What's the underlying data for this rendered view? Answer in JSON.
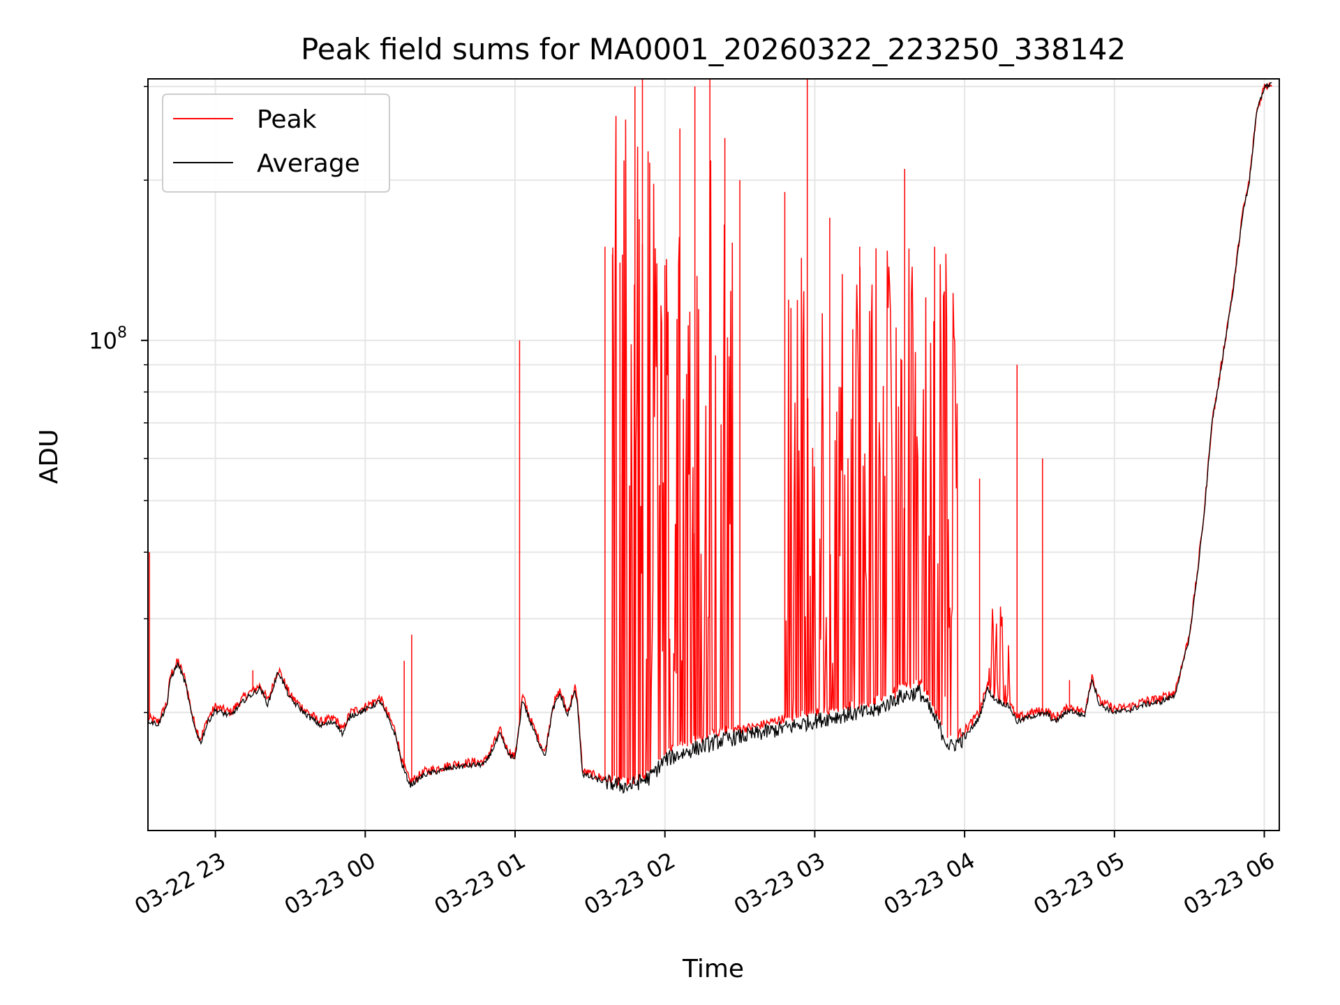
{
  "chart_data": {
    "type": "line",
    "title": "Peak field sums for MA0001_20260322_223250_338142",
    "xlabel": "Time",
    "ylabel": "ADU",
    "yscale": "log",
    "ylim": [
      12000000,
      310000000
    ],
    "xlim": [
      -0.45,
      7.1
    ],
    "grid": true,
    "legend_position": "upper-left",
    "y_major_tick_label": "10",
    "y_major_tick_exponent": "8",
    "y_major_tick_value": 100000000,
    "y_minor_tick_values": [
      20000000,
      30000000,
      40000000,
      50000000,
      60000000,
      70000000,
      80000000,
      90000000,
      200000000,
      300000000
    ],
    "x_ticks": [
      {
        "value": 0,
        "label": "03-22 23"
      },
      {
        "value": 1,
        "label": "03-23 00"
      },
      {
        "value": 2,
        "label": "03-23 01"
      },
      {
        "value": 3,
        "label": "03-23 02"
      },
      {
        "value": 4,
        "label": "03-23 03"
      },
      {
        "value": 5,
        "label": "03-23 04"
      },
      {
        "value": 6,
        "label": "03-23 05"
      },
      {
        "value": 7,
        "label": "03-23 06"
      }
    ],
    "x_unit_note": "x values are hours after 2026-03-22 23:00",
    "series": [
      {
        "name": "Peak",
        "color": "#ff0000",
        "baseline_points": [
          [
            -0.45,
            19500000
          ],
          [
            -0.38,
            19200000
          ],
          [
            -0.32,
            21000000
          ],
          [
            -0.3,
            23500000
          ],
          [
            -0.25,
            25000000
          ],
          [
            -0.2,
            23000000
          ],
          [
            -0.15,
            19500000
          ],
          [
            -0.12,
            18500000
          ],
          [
            -0.1,
            17800000
          ],
          [
            -0.05,
            19500000
          ],
          [
            0.0,
            20500000
          ],
          [
            0.1,
            20000000
          ],
          [
            0.2,
            21500000
          ],
          [
            0.3,
            22500000
          ],
          [
            0.35,
            21000000
          ],
          [
            0.42,
            24200000
          ],
          [
            0.5,
            21500000
          ],
          [
            0.6,
            20200000
          ],
          [
            0.7,
            19200000
          ],
          [
            0.8,
            19500000
          ],
          [
            0.85,
            18500000
          ],
          [
            0.9,
            20000000
          ],
          [
            1.0,
            20500000
          ],
          [
            1.1,
            21300000
          ],
          [
            1.2,
            18500000
          ],
          [
            1.25,
            16000000
          ],
          [
            1.3,
            14800000
          ],
          [
            1.4,
            15500000
          ],
          [
            1.6,
            16000000
          ],
          [
            1.8,
            16200000
          ],
          [
            1.9,
            18500000
          ],
          [
            1.95,
            17000000
          ],
          [
            2.0,
            16500000
          ],
          [
            2.05,
            21500000
          ],
          [
            2.1,
            19500000
          ],
          [
            2.15,
            18000000
          ],
          [
            2.2,
            16800000
          ],
          [
            2.25,
            20500000
          ],
          [
            2.3,
            22000000
          ],
          [
            2.35,
            20000000
          ],
          [
            2.4,
            22300000
          ],
          [
            2.42,
            20500000
          ],
          [
            2.45,
            15500000
          ],
          [
            2.6,
            15000000
          ],
          [
            2.75,
            14800000
          ],
          [
            2.9,
            15300000
          ],
          [
            3.0,
            17000000
          ],
          [
            3.2,
            17800000
          ],
          [
            3.4,
            18500000
          ],
          [
            3.6,
            18800000
          ],
          [
            3.8,
            19500000
          ],
          [
            4.0,
            20000000
          ],
          [
            4.2,
            20500000
          ],
          [
            4.4,
            21000000
          ],
          [
            4.55,
            22300000
          ],
          [
            4.7,
            22800000
          ],
          [
            4.8,
            20500000
          ],
          [
            4.9,
            17800000
          ],
          [
            5.0,
            18500000
          ],
          [
            5.1,
            20000000
          ],
          [
            5.15,
            22500000
          ],
          [
            5.2,
            21500000
          ],
          [
            5.3,
            20800000
          ],
          [
            5.35,
            19500000
          ],
          [
            5.45,
            20000000
          ],
          [
            5.55,
            20200000
          ],
          [
            5.6,
            19500000
          ],
          [
            5.7,
            20500000
          ],
          [
            5.8,
            20000000
          ],
          [
            5.85,
            23500000
          ],
          [
            5.9,
            21000000
          ],
          [
            6.0,
            20300000
          ],
          [
            6.1,
            20500000
          ],
          [
            6.2,
            21000000
          ],
          [
            6.3,
            21200000
          ],
          [
            6.4,
            21800000
          ],
          [
            6.45,
            24500000
          ],
          [
            6.5,
            28000000
          ],
          [
            6.55,
            36000000
          ],
          [
            6.6,
            48000000
          ],
          [
            6.65,
            70000000
          ],
          [
            6.7,
            85000000
          ],
          [
            6.8,
            130000000
          ],
          [
            6.85,
            170000000
          ],
          [
            6.9,
            200000000
          ],
          [
            6.95,
            270000000
          ],
          [
            7.0,
            300000000
          ],
          [
            7.1,
            310000000
          ]
        ],
        "spikes": [
          [
            -0.44,
            40000000
          ],
          [
            0.25,
            24000000
          ],
          [
            1.26,
            25000000
          ],
          [
            1.31,
            28000000
          ],
          [
            2.03,
            100000000
          ],
          [
            2.6,
            150000000
          ],
          [
            2.65,
            145000000
          ],
          [
            2.7,
            140000000
          ],
          [
            2.8,
            300000000
          ],
          [
            2.85,
            310000000
          ],
          [
            3.1,
            250000000
          ],
          [
            3.2,
            300000000
          ],
          [
            3.3,
            310000000
          ],
          [
            3.4,
            240000000
          ],
          [
            3.5,
            200000000
          ],
          [
            3.8,
            190000000
          ],
          [
            3.95,
            310000000
          ],
          [
            4.1,
            170000000
          ],
          [
            4.3,
            150000000
          ],
          [
            4.6,
            210000000
          ],
          [
            4.8,
            150000000
          ],
          [
            5.1,
            55000000
          ],
          [
            5.35,
            90000000
          ],
          [
            5.52,
            60000000
          ],
          [
            5.7,
            23000000
          ]
        ],
        "dense_bands": [
          {
            "x_start": 2.65,
            "x_end": 3.45,
            "peak_max": 270000000,
            "peak_min": 22000000
          },
          {
            "x_start": 3.8,
            "x_end": 4.95,
            "peak_max": 150000000,
            "peak_min": 21000000
          },
          {
            "x_start": 5.15,
            "x_end": 5.3,
            "peak_max": 32000000,
            "peak_min": 21000000
          }
        ]
      },
      {
        "name": "Average",
        "color": "#000000",
        "baseline_points": [
          [
            -0.45,
            19300000
          ],
          [
            -0.38,
            19000000
          ],
          [
            -0.32,
            20800000
          ],
          [
            -0.3,
            23200000
          ],
          [
            -0.25,
            24700000
          ],
          [
            -0.2,
            22700000
          ],
          [
            -0.15,
            19200000
          ],
          [
            -0.12,
            18200000
          ],
          [
            -0.1,
            17500000
          ],
          [
            -0.05,
            19200000
          ],
          [
            0.0,
            20200000
          ],
          [
            0.1,
            19700000
          ],
          [
            0.2,
            21200000
          ],
          [
            0.3,
            22200000
          ],
          [
            0.35,
            20700000
          ],
          [
            0.42,
            23900000
          ],
          [
            0.5,
            21200000
          ],
          [
            0.6,
            19900000
          ],
          [
            0.7,
            18900000
          ],
          [
            0.8,
            19200000
          ],
          [
            0.85,
            18200000
          ],
          [
            0.9,
            19700000
          ],
          [
            1.0,
            20200000
          ],
          [
            1.1,
            21000000
          ],
          [
            1.2,
            18200000
          ],
          [
            1.25,
            15800000
          ],
          [
            1.3,
            14600000
          ],
          [
            1.4,
            15300000
          ],
          [
            1.6,
            15800000
          ],
          [
            1.8,
            16000000
          ],
          [
            1.9,
            18200000
          ],
          [
            1.95,
            16800000
          ],
          [
            2.0,
            16300000
          ],
          [
            2.05,
            21200000
          ],
          [
            2.1,
            19200000
          ],
          [
            2.15,
            17800000
          ],
          [
            2.2,
            16600000
          ],
          [
            2.25,
            20200000
          ],
          [
            2.3,
            21700000
          ],
          [
            2.35,
            19700000
          ],
          [
            2.4,
            22000000
          ],
          [
            2.42,
            20200000
          ],
          [
            2.45,
            15300000
          ],
          [
            2.6,
            14800000
          ],
          [
            2.75,
            14500000
          ],
          [
            2.9,
            15100000
          ],
          [
            3.0,
            16300000
          ],
          [
            3.2,
            17100000
          ],
          [
            3.4,
            17800000
          ],
          [
            3.6,
            18200000
          ],
          [
            3.8,
            18700000
          ],
          [
            4.0,
            19300000
          ],
          [
            4.2,
            19800000
          ],
          [
            4.4,
            20100000
          ],
          [
            4.55,
            21300000
          ],
          [
            4.7,
            21900000
          ],
          [
            4.8,
            19500000
          ],
          [
            4.9,
            17200000
          ],
          [
            5.0,
            17900000
          ],
          [
            5.1,
            19600000
          ],
          [
            5.15,
            22200000
          ],
          [
            5.2,
            21200000
          ],
          [
            5.3,
            20500000
          ],
          [
            5.35,
            19200000
          ],
          [
            5.45,
            19700000
          ],
          [
            5.55,
            19900000
          ],
          [
            5.6,
            19200000
          ],
          [
            5.7,
            20200000
          ],
          [
            5.8,
            19700000
          ],
          [
            5.85,
            23200000
          ],
          [
            5.9,
            20700000
          ],
          [
            6.0,
            20000000
          ],
          [
            6.1,
            20200000
          ],
          [
            6.2,
            20700000
          ],
          [
            6.3,
            20900000
          ],
          [
            6.4,
            21500000
          ],
          [
            6.45,
            24200000
          ],
          [
            6.5,
            27700000
          ],
          [
            6.55,
            35700000
          ],
          [
            6.6,
            47700000
          ],
          [
            6.65,
            69700000
          ],
          [
            6.7,
            84700000
          ],
          [
            6.8,
            129000000
          ],
          [
            6.85,
            169000000
          ],
          [
            6.9,
            199000000
          ],
          [
            6.95,
            269000000
          ],
          [
            7.0,
            299000000
          ],
          [
            7.1,
            309000000
          ]
        ]
      }
    ]
  }
}
